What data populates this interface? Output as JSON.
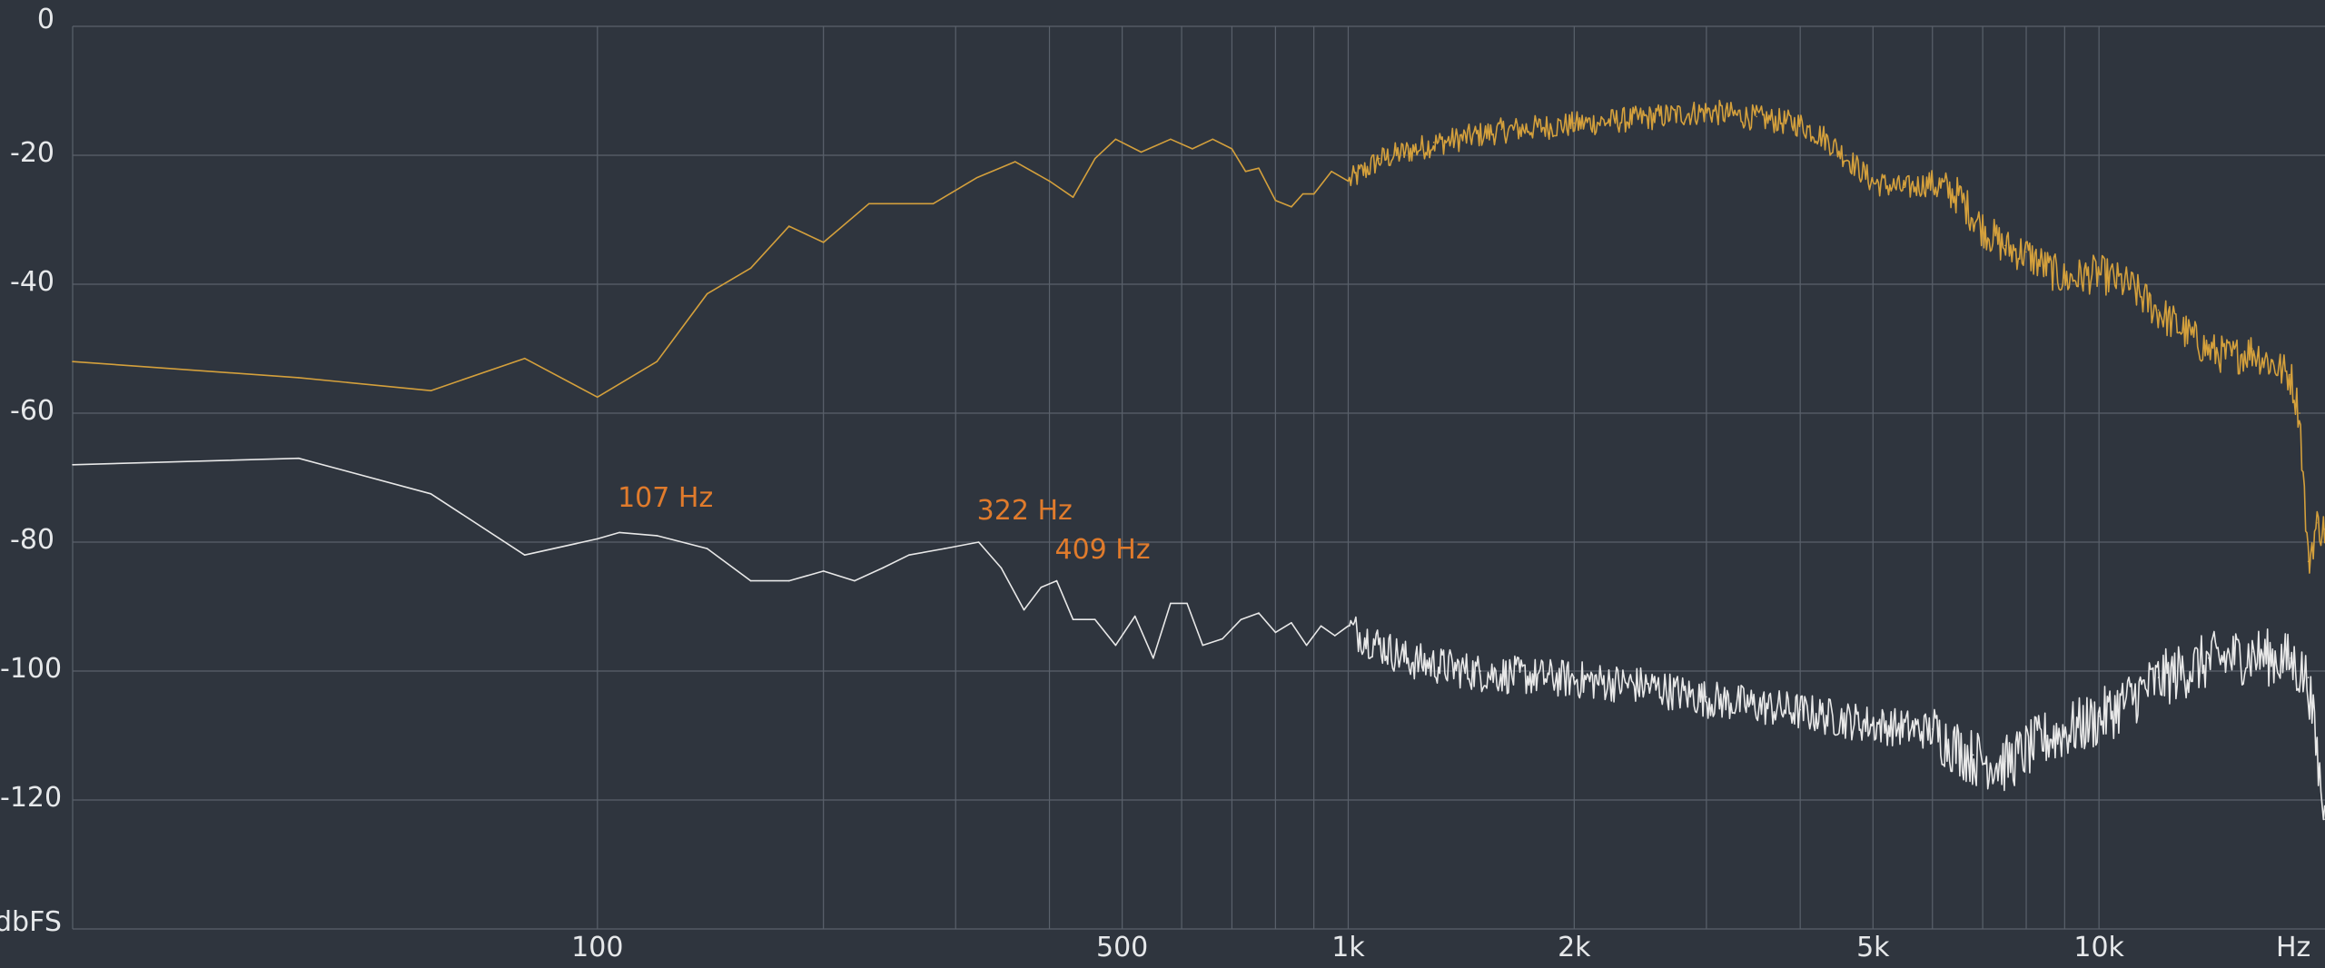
{
  "chart_data": {
    "type": "line",
    "x_scale": "log",
    "xlim": [
      20,
      20000
    ],
    "ylim": [
      -140,
      0
    ],
    "grid": true,
    "yticks": [
      0,
      -20,
      -40,
      -60,
      -80,
      -100,
      -120
    ],
    "ytick_labels": [
      "0",
      "-20",
      "-40",
      "-60",
      "-80",
      "-100",
      "-120"
    ],
    "y_unit": "dbFS",
    "xticks": [
      100,
      500,
      1000,
      2000,
      5000,
      10000
    ],
    "xtick_labels": [
      "100",
      "500",
      "1k",
      "2k",
      "5k",
      "10k"
    ],
    "x_unit": "Hz",
    "x_minor_grid": [
      100,
      200,
      300,
      400,
      500,
      600,
      700,
      800,
      900,
      1000,
      2000,
      3000,
      4000,
      5000,
      6000,
      7000,
      8000,
      9000,
      10000
    ],
    "series": [
      {
        "color": "#d4a03c",
        "noise_from_hz": 1000,
        "points": [
          [
            20,
            -52
          ],
          [
            40,
            -54.5
          ],
          [
            60,
            -56.5
          ],
          [
            80,
            -51.5
          ],
          [
            100,
            -57.5
          ],
          [
            120,
            -52
          ],
          [
            140,
            -41.5
          ],
          [
            160,
            -37.5
          ],
          [
            180,
            -31
          ],
          [
            200,
            -33.5
          ],
          [
            230,
            -27.5
          ],
          [
            280,
            -27.5
          ],
          [
            320,
            -23.5
          ],
          [
            360,
            -21
          ],
          [
            400,
            -24
          ],
          [
            430,
            -26.5
          ],
          [
            460,
            -20.5
          ],
          [
            490,
            -17.5
          ],
          [
            530,
            -19.5
          ],
          [
            580,
            -17.5
          ],
          [
            620,
            -19
          ],
          [
            660,
            -17.5
          ],
          [
            700,
            -19
          ],
          [
            730,
            -22.5
          ],
          [
            760,
            -22
          ],
          [
            800,
            -27
          ],
          [
            840,
            -28
          ],
          [
            870,
            -26
          ],
          [
            900,
            -26
          ],
          [
            950,
            -22.5
          ],
          [
            1000,
            -24
          ],
          [
            1100,
            -20.5
          ],
          [
            1300,
            -18
          ],
          [
            1600,
            -16
          ],
          [
            2000,
            -15
          ],
          [
            2500,
            -14
          ],
          [
            3000,
            -13
          ],
          [
            3500,
            -14
          ],
          [
            4000,
            -15
          ],
          [
            4300,
            -17
          ],
          [
            4600,
            -20
          ],
          [
            5000,
            -24
          ],
          [
            5500,
            -25
          ],
          [
            6000,
            -24
          ],
          [
            6500,
            -26
          ],
          [
            7000,
            -31
          ],
          [
            7500,
            -34
          ],
          [
            8000,
            -35
          ],
          [
            9000,
            -39
          ],
          [
            10000,
            -38
          ],
          [
            11000,
            -40
          ],
          [
            12000,
            -44
          ],
          [
            13000,
            -47
          ],
          [
            14000,
            -50
          ],
          [
            15000,
            -51
          ],
          [
            16000,
            -50
          ],
          [
            17000,
            -52
          ],
          [
            18000,
            -54
          ],
          [
            18500,
            -60
          ],
          [
            19000,
            -83
          ],
          [
            19500,
            -77
          ],
          [
            20000,
            -78
          ]
        ]
      },
      {
        "color": "#e8e8e8",
        "noise_from_hz": 1000,
        "points": [
          [
            20,
            -68
          ],
          [
            40,
            -67
          ],
          [
            60,
            -72.5
          ],
          [
            80,
            -82
          ],
          [
            100,
            -79.5
          ],
          [
            107,
            -78.5
          ],
          [
            120,
            -79
          ],
          [
            140,
            -81
          ],
          [
            160,
            -86
          ],
          [
            180,
            -86
          ],
          [
            200,
            -84.5
          ],
          [
            220,
            -86
          ],
          [
            240,
            -84
          ],
          [
            260,
            -82
          ],
          [
            290,
            -81
          ],
          [
            322,
            -80
          ],
          [
            345,
            -84
          ],
          [
            370,
            -90.5
          ],
          [
            390,
            -87
          ],
          [
            409,
            -86
          ],
          [
            430,
            -92
          ],
          [
            460,
            -92
          ],
          [
            490,
            -96
          ],
          [
            520,
            -91.5
          ],
          [
            550,
            -98
          ],
          [
            580,
            -89.5
          ],
          [
            610,
            -89.5
          ],
          [
            640,
            -96
          ],
          [
            680,
            -95
          ],
          [
            720,
            -92
          ],
          [
            760,
            -91
          ],
          [
            800,
            -94
          ],
          [
            840,
            -92.5
          ],
          [
            880,
            -96
          ],
          [
            920,
            -93
          ],
          [
            960,
            -94.5
          ],
          [
            1000,
            -93
          ],
          [
            1200,
            -98
          ],
          [
            1500,
            -100
          ],
          [
            2000,
            -101
          ],
          [
            2500,
            -102
          ],
          [
            3000,
            -104
          ],
          [
            4000,
            -106
          ],
          [
            5000,
            -108
          ],
          [
            6000,
            -109
          ],
          [
            6800,
            -113
          ],
          [
            7500,
            -114
          ],
          [
            8500,
            -110
          ],
          [
            10000,
            -107
          ],
          [
            12000,
            -101
          ],
          [
            14000,
            -98
          ],
          [
            16000,
            -97
          ],
          [
            18000,
            -98
          ],
          [
            19000,
            -101
          ],
          [
            20000,
            -123
          ]
        ]
      }
    ],
    "annotations": [
      {
        "x": 107,
        "y": -78,
        "text": "107 Hz",
        "color": "#e07b2c"
      },
      {
        "x": 322,
        "y": -80,
        "text": "322 Hz",
        "color": "#e07b2c"
      },
      {
        "x": 409,
        "y": -86,
        "text": "409 Hz",
        "color": "#e07b2c"
      }
    ]
  }
}
